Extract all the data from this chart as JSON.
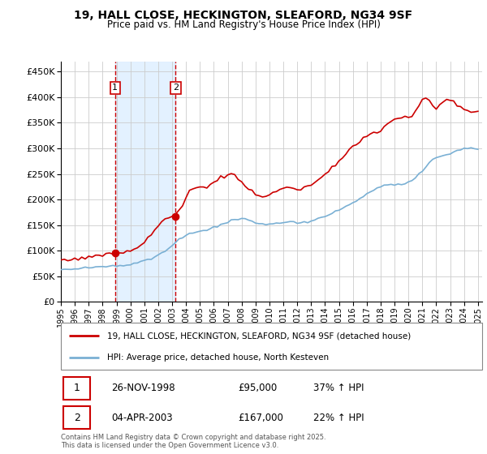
{
  "title": "19, HALL CLOSE, HECKINGTON, SLEAFORD, NG34 9SF",
  "subtitle": "Price paid vs. HM Land Registry's House Price Index (HPI)",
  "legend_line1": "19, HALL CLOSE, HECKINGTON, SLEAFORD, NG34 9SF (detached house)",
  "legend_line2": "HPI: Average price, detached house, North Kesteven",
  "transaction1_date": "26-NOV-1998",
  "transaction1_price": "£95,000",
  "transaction1_hpi": "37% ↑ HPI",
  "transaction2_date": "04-APR-2003",
  "transaction2_price": "£167,000",
  "transaction2_hpi": "22% ↑ HPI",
  "footer": "Contains HM Land Registry data © Crown copyright and database right 2025.\nThis data is licensed under the Open Government Licence v3.0.",
  "red_color": "#cc0000",
  "blue_color": "#7ab0d4",
  "background_color": "#ffffff",
  "grid_color": "#cccccc",
  "shade_color": "#ddeeff",
  "sale1_year": 1998.9,
  "sale1_price": 95000,
  "sale2_year": 2003.25,
  "sale2_price": 167000,
  "ylim_max": 470000,
  "hpi_years": [
    1995,
    1995.25,
    1995.5,
    1995.75,
    1996,
    1996.25,
    1996.5,
    1996.75,
    1997,
    1997.25,
    1997.5,
    1997.75,
    1998,
    1998.25,
    1998.5,
    1998.75,
    1999,
    1999.25,
    1999.5,
    1999.75,
    2000,
    2000.25,
    2000.5,
    2000.75,
    2001,
    2001.25,
    2001.5,
    2001.75,
    2002,
    2002.25,
    2002.5,
    2002.75,
    2003,
    2003.25,
    2003.5,
    2003.75,
    2004,
    2004.25,
    2004.5,
    2004.75,
    2005,
    2005.25,
    2005.5,
    2005.75,
    2006,
    2006.25,
    2006.5,
    2006.75,
    2007,
    2007.25,
    2007.5,
    2007.75,
    2008,
    2008.25,
    2008.5,
    2008.75,
    2009,
    2009.25,
    2009.5,
    2009.75,
    2010,
    2010.25,
    2010.5,
    2010.75,
    2011,
    2011.25,
    2011.5,
    2011.75,
    2012,
    2012.25,
    2012.5,
    2012.75,
    2013,
    2013.25,
    2013.5,
    2013.75,
    2014,
    2014.25,
    2014.5,
    2014.75,
    2015,
    2015.25,
    2015.5,
    2015.75,
    2016,
    2016.25,
    2016.5,
    2016.75,
    2017,
    2017.25,
    2017.5,
    2017.75,
    2018,
    2018.25,
    2018.5,
    2018.75,
    2019,
    2019.25,
    2019.5,
    2019.75,
    2020,
    2020.25,
    2020.5,
    2020.75,
    2021,
    2021.25,
    2021.5,
    2021.75,
    2022,
    2022.25,
    2022.5,
    2022.75,
    2023,
    2023.25,
    2023.5,
    2023.75,
    2024,
    2024.25,
    2024.5,
    2024.75,
    2025
  ],
  "hpi_values": [
    63000,
    63500,
    64000,
    64500,
    65000,
    65500,
    66000,
    66500,
    67000,
    67500,
    68000,
    68500,
    69000,
    69500,
    70000,
    70500,
    71000,
    71800,
    72600,
    73400,
    74500,
    76000,
    77500,
    79000,
    81000,
    83500,
    86000,
    88500,
    92000,
    96000,
    100500,
    105000,
    111000,
    117000,
    122000,
    126000,
    130000,
    133000,
    135000,
    136500,
    138000,
    139500,
    141000,
    143000,
    145500,
    148000,
    150500,
    153000,
    155500,
    158000,
    160000,
    162000,
    163000,
    162000,
    160000,
    157000,
    154000,
    152000,
    151000,
    151500,
    152000,
    153000,
    154000,
    155000,
    155500,
    156000,
    156000,
    155500,
    155000,
    155500,
    156000,
    157000,
    158500,
    160000,
    162000,
    164500,
    167000,
    170000,
    173000,
    176000,
    179500,
    183000,
    186500,
    190000,
    194000,
    198000,
    202000,
    206000,
    210000,
    214000,
    218000,
    222000,
    225000,
    227000,
    228500,
    229000,
    229500,
    230000,
    231000,
    233000,
    235000,
    238000,
    242000,
    248000,
    256000,
    264000,
    272000,
    278000,
    282000,
    284000,
    285000,
    287000,
    290000,
    293000,
    296000,
    298000,
    300000,
    300500,
    300000,
    299000,
    298000
  ],
  "red_years": [
    1995,
    1995.25,
    1995.5,
    1995.75,
    1996,
    1996.25,
    1996.5,
    1996.75,
    1997,
    1997.25,
    1997.5,
    1997.75,
    1998,
    1998.25,
    1998.5,
    1998.75,
    1999,
    1999.25,
    1999.5,
    1999.75,
    2000,
    2000.25,
    2000.5,
    2000.75,
    2001,
    2001.25,
    2001.5,
    2001.75,
    2002,
    2002.25,
    2002.5,
    2002.75,
    2003,
    2003.25,
    2003.5,
    2003.75,
    2004,
    2004.25,
    2004.5,
    2004.75,
    2005,
    2005.25,
    2005.5,
    2005.75,
    2006,
    2006.25,
    2006.5,
    2006.75,
    2007,
    2007.25,
    2007.5,
    2007.75,
    2008,
    2008.25,
    2008.5,
    2008.75,
    2009,
    2009.25,
    2009.5,
    2009.75,
    2010,
    2010.25,
    2010.5,
    2010.75,
    2011,
    2011.25,
    2011.5,
    2011.75,
    2012,
    2012.25,
    2012.5,
    2012.75,
    2013,
    2013.25,
    2013.5,
    2013.75,
    2014,
    2014.25,
    2014.5,
    2014.75,
    2015,
    2015.25,
    2015.5,
    2015.75,
    2016,
    2016.25,
    2016.5,
    2016.75,
    2017,
    2017.25,
    2017.5,
    2017.75,
    2018,
    2018.25,
    2018.5,
    2018.75,
    2019,
    2019.25,
    2019.5,
    2019.75,
    2020,
    2020.25,
    2020.5,
    2020.75,
    2021,
    2021.25,
    2021.5,
    2021.75,
    2022,
    2022.25,
    2022.5,
    2022.75,
    2023,
    2023.25,
    2023.5,
    2023.75,
    2024,
    2024.25,
    2024.5,
    2024.75,
    2025
  ],
  "red_values": [
    83000,
    83500,
    84000,
    84000,
    85000,
    85500,
    86000,
    87000,
    88000,
    89000,
    90000,
    91000,
    92000,
    92500,
    93000,
    93500,
    95000,
    96000,
    97000,
    98000,
    100000,
    103000,
    107000,
    112000,
    118000,
    124000,
    131000,
    139000,
    148000,
    158000,
    163000,
    165000,
    167000,
    172000,
    180000,
    190000,
    205000,
    215000,
    222000,
    225000,
    224000,
    222000,
    225000,
    230000,
    235000,
    240000,
    245000,
    242000,
    248000,
    252000,
    248000,
    240000,
    235000,
    228000,
    222000,
    216000,
    210000,
    207000,
    205000,
    207000,
    210000,
    213000,
    216000,
    220000,
    222000,
    222000,
    222000,
    221000,
    220000,
    221000,
    223000,
    225000,
    228000,
    232000,
    237000,
    242000,
    248000,
    255000,
    262000,
    268000,
    274000,
    280000,
    287000,
    295000,
    302000,
    309000,
    315000,
    320000,
    325000,
    328000,
    330000,
    333000,
    337000,
    342000,
    348000,
    353000,
    357000,
    360000,
    362000,
    363000,
    362000,
    365000,
    372000,
    383000,
    395000,
    400000,
    395000,
    385000,
    378000,
    385000,
    392000,
    395000,
    393000,
    389000,
    385000,
    380000,
    376000,
    374000,
    373000,
    372000,
    371000
  ]
}
